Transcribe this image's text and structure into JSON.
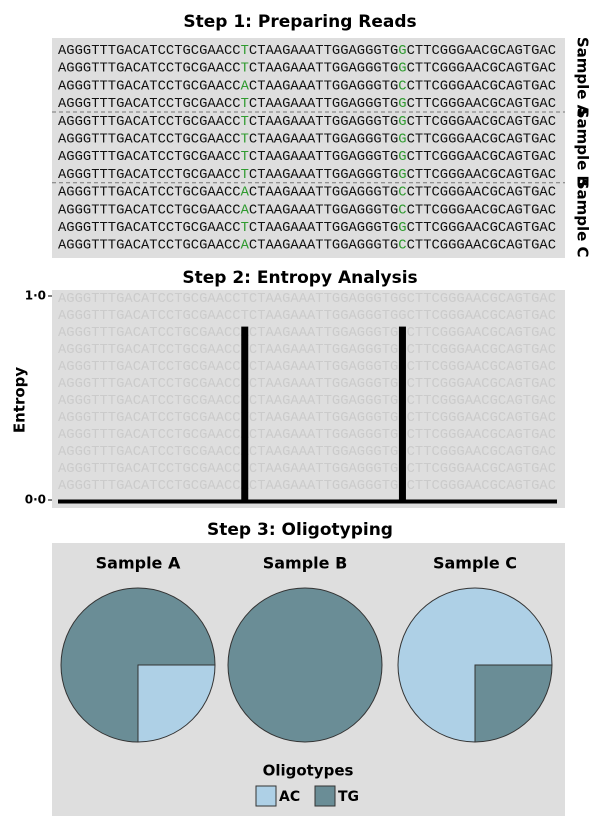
{
  "step1": {
    "title": "Step 1: Preparing Reads",
    "highlight_color": "#2e9a2e",
    "samples": [
      {
        "label": "Sample A",
        "reads": [
          "AGGGTTTGACATCCTGCGAACCTCTAAGAAATTGGAGGGTGGCTTCGGGAACGCAGTGAC",
          "AGGGTTTGACATCCTGCGAACCTCTAAGAAATTGGAGGGTGGCTTCGGGAACGCAGTGAC",
          "AGGGTTTGACATCCTGCGAACCACTAAGAAATTGGAGGGTGCCTTCGGGAACGCAGTGAC",
          "AGGGTTTGACATCCTGCGAACCTCTAAGAAATTGGAGGGTGGCTTCGGGAACGCAGTGAC"
        ]
      },
      {
        "label": "Sample B",
        "reads": [
          "AGGGTTTGACATCCTGCGAACCTCTAAGAAATTGGAGGGTGGCTTCGGGAACGCAGTGAC",
          "AGGGTTTGACATCCTGCGAACCTCTAAGAAATTGGAGGGTGGCTTCGGGAACGCAGTGAC",
          "AGGGTTTGACATCCTGCGAACCTCTAAGAAATTGGAGGGTGGCTTCGGGAACGCAGTGAC",
          "AGGGTTTGACATCCTGCGAACCTCTAAGAAATTGGAGGGTGGCTTCGGGAACGCAGTGAC"
        ]
      },
      {
        "label": "Sample C",
        "reads": [
          "AGGGTTTGACATCCTGCGAACCACTAAGAAATTGGAGGGTGCCTTCGGGAACGCAGTGAC",
          "AGGGTTTGACATCCTGCGAACCACTAAGAAATTGGAGGGTGCCTTCGGGAACGCAGTGAC",
          "AGGGTTTGACATCCTGCGAACCTCTAAGAAATTGGAGGGTGGCTTCGGGAACGCAGTGAC",
          "AGGGTTTGACATCCTGCGAACCACTAAGAAATTGGAGGGTGCCTTCGGGAACGCAGTGAC"
        ]
      }
    ]
  },
  "step2": {
    "title": "Step 2: Entropy Analysis",
    "ylabel": "Entropy",
    "ylim": [
      0,
      1
    ],
    "yticks": [
      {
        "value": 0,
        "label": "0·0"
      },
      {
        "value": 1,
        "label": "1·0"
      }
    ],
    "color": "#000000",
    "entropy": [
      0,
      0,
      0,
      0,
      0,
      0,
      0,
      0,
      0,
      0,
      0,
      0,
      0,
      0,
      0,
      0,
      0,
      0,
      0,
      0,
      0,
      0,
      0.85,
      0,
      0,
      0,
      0,
      0,
      0,
      0,
      0,
      0,
      0,
      0,
      0,
      0,
      0,
      0,
      0,
      0,
      0,
      0.85,
      0,
      0,
      0,
      0,
      0,
      0,
      0,
      0,
      0,
      0,
      0,
      0,
      0,
      0,
      0,
      0,
      0,
      0
    ]
  },
  "step3": {
    "title": "Step 3: Oligotyping",
    "legend_title": "Oligotypes",
    "oligotypes": [
      {
        "name": "AC",
        "color": "#aed0e6"
      },
      {
        "name": "TG",
        "color": "#6a8d96"
      }
    ],
    "pies": [
      {
        "name": "Sample A",
        "values": [
          25,
          75
        ],
        "startangle": 90
      },
      {
        "name": "Sample B",
        "values": [
          0,
          100
        ],
        "startangle": 90
      },
      {
        "name": "Sample C",
        "values": [
          75,
          25
        ],
        "startangle": 180
      }
    ]
  }
}
